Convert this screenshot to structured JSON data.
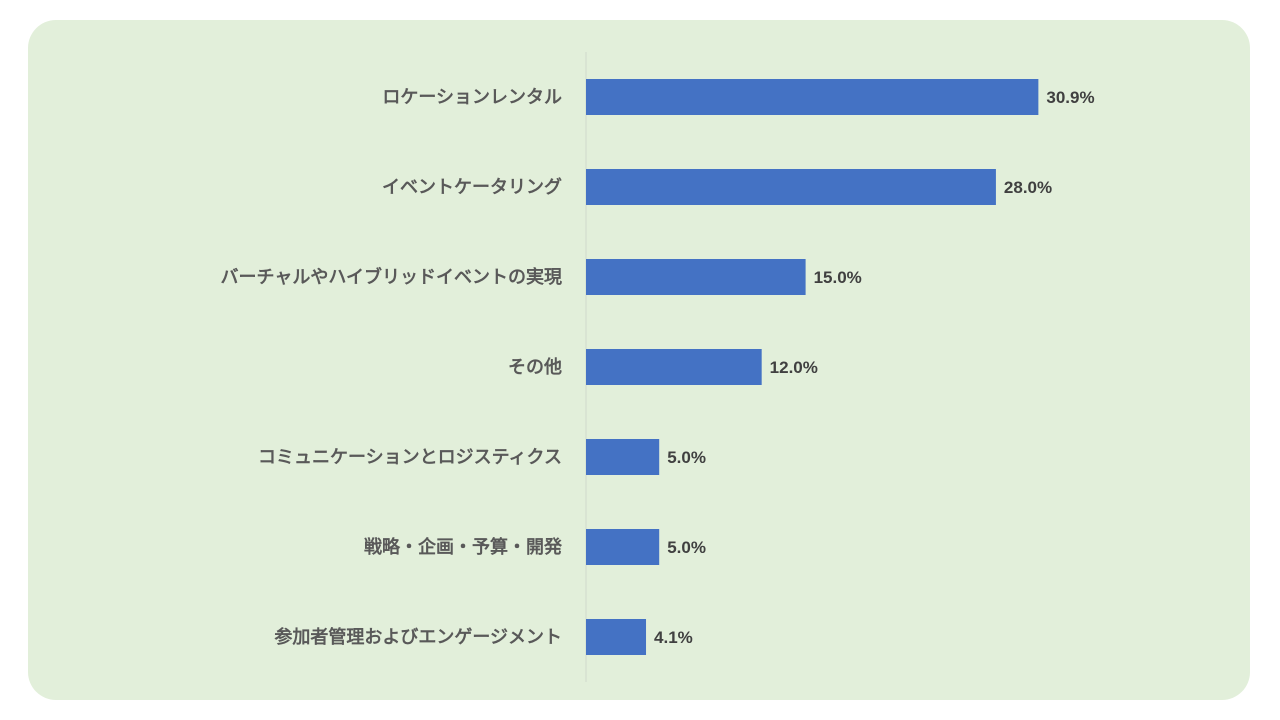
{
  "colors": {
    "background": "#e2efda",
    "bar": "#4472c4",
    "axis": "#d0d8cc"
  },
  "chart_data": {
    "type": "bar",
    "orientation": "horizontal",
    "categories": [
      "ロケーションレンタル",
      "イベントケータリング",
      "バーチャルやハイブリッドイベントの実現",
      "その他",
      "コミュニケーションとロジスティクス",
      "戦略・企画・予算・開発",
      "参加者管理およびエンゲージメント"
    ],
    "values": [
      30.9,
      28.0,
      15.0,
      12.0,
      5.0,
      5.0,
      4.1
    ],
    "value_labels": [
      "30.9%",
      "28.0%",
      "15.0%",
      "12.0%",
      "5.0%",
      "5.0%",
      "4.1%"
    ],
    "unit": "%",
    "xlim": [
      0,
      40
    ],
    "grid": false,
    "legend": "none"
  }
}
